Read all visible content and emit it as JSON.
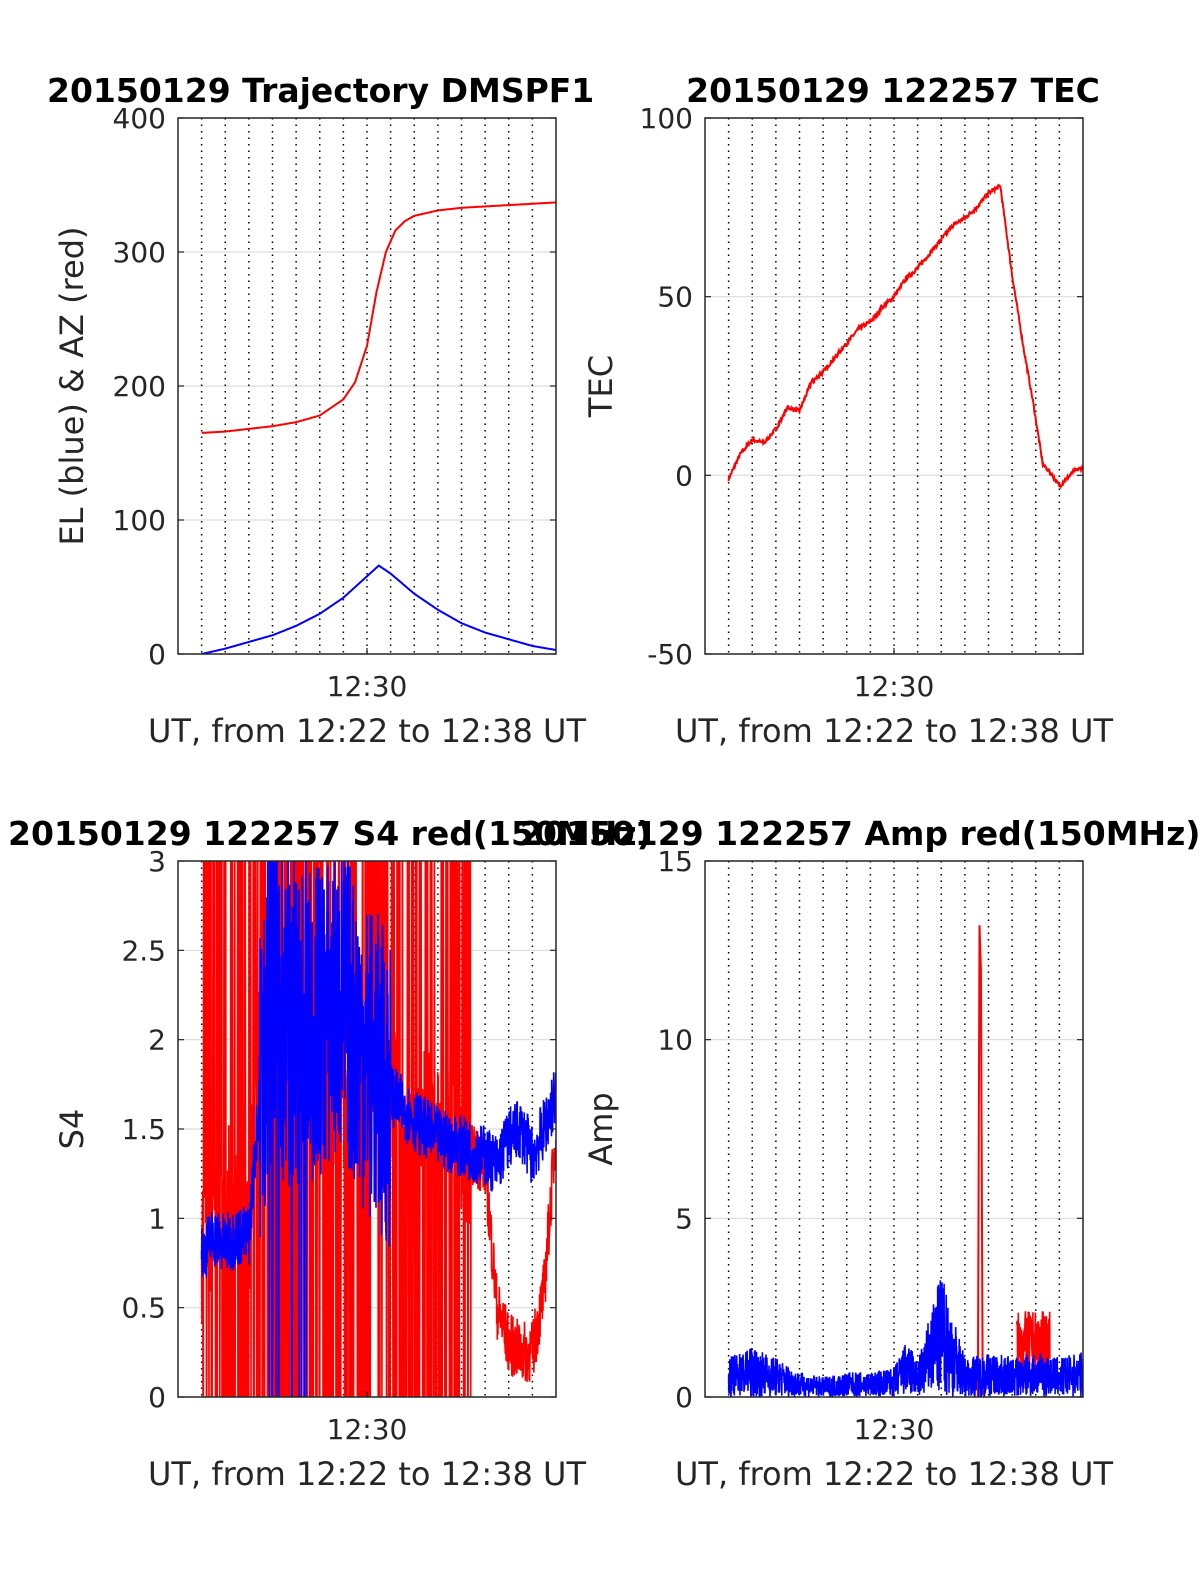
{
  "colors": {
    "red": "#ff0000",
    "blue": "#0000ff",
    "axis": "#262626",
    "grid": "#dcdcdc",
    "vgrid": "#000000"
  },
  "chart_data": [
    {
      "type": "line",
      "title": "20150129 Trajectory DMSPF1",
      "xlabel": "UT, from 12:22 to 12:38 UT",
      "ylabel": "EL (blue) & AZ (red)",
      "x_ticks": [
        "12:30"
      ],
      "y_ticks": [
        "0",
        "100",
        "200",
        "300",
        "400"
      ],
      "ylim": [
        0,
        400
      ],
      "xlim_minutes": [
        0,
        16
      ],
      "grid": "horizontal major lines plus dotted vertical lines",
      "series": [
        {
          "color": "red",
          "x": [
            1,
            2,
            3,
            4,
            5,
            6,
            7,
            7.5,
            8,
            8.4,
            8.8,
            9.2,
            9.6,
            10,
            11,
            12,
            13,
            14,
            15,
            16
          ],
          "y": [
            165,
            166,
            168,
            170,
            173,
            178,
            190,
            203,
            230,
            270,
            300,
            316,
            323,
            327,
            331,
            333,
            334,
            335,
            336,
            337
          ]
        },
        {
          "color": "blue",
          "x": [
            1,
            2,
            3,
            4,
            5,
            6,
            7,
            8,
            8.5,
            9,
            10,
            11,
            12,
            13,
            14,
            15,
            16
          ],
          "y": [
            0,
            4,
            9,
            14,
            21,
            30,
            42,
            58,
            66,
            60,
            45,
            33,
            23,
            16,
            11,
            6,
            3
          ]
        }
      ]
    },
    {
      "type": "line",
      "title": "20150129 122257 TEC",
      "xlabel": "UT, from 12:22 to 12:38 UT",
      "ylabel": "TEC",
      "x_ticks": [
        "12:30"
      ],
      "y_ticks": [
        "-50",
        "0",
        "50",
        "100"
      ],
      "ylim": [
        -50,
        100
      ],
      "xlim_minutes": [
        0,
        16
      ],
      "grid": "horizontal major lines plus dotted vertical lines",
      "series": [
        {
          "color": "red",
          "x": [
            1,
            1.5,
            2,
            2.5,
            3,
            3.5,
            4,
            4.5,
            5,
            5.5,
            6,
            6.5,
            7,
            7.5,
            8,
            8.5,
            9,
            9.5,
            10,
            10.5,
            11,
            11.5,
            12,
            12.5,
            13,
            13.5,
            13.9,
            14.3,
            14.6,
            15,
            15.3,
            15.6,
            15.9,
            16
          ],
          "y": [
            -1,
            6,
            10,
            9,
            13,
            19,
            18,
            26,
            29,
            33,
            37,
            41,
            43,
            47,
            50,
            55,
            58,
            62,
            66,
            70,
            72,
            75,
            79,
            81,
            56,
            35,
            20,
            3,
            1,
            -3,
            -1,
            1,
            2,
            2
          ]
        }
      ]
    },
    {
      "type": "line",
      "title": "20150129 122257 S4 red(150MHz)",
      "xlabel": "UT, from 12:22 to 12:38 UT",
      "ylabel": "S4",
      "x_ticks": [
        "12:30"
      ],
      "y_ticks": [
        "0",
        "0.5",
        "1",
        "1.5",
        "2",
        "2.5",
        "3"
      ],
      "ylim": [
        0,
        3
      ],
      "xlim_minutes": [
        0,
        16
      ],
      "grid": "horizontal major lines plus dotted vertical lines",
      "series": [
        {
          "color": "red",
          "x": [
            1,
            2,
            3,
            3.5,
            4,
            5,
            6,
            7,
            8,
            9,
            10,
            11,
            12,
            13,
            13.5,
            14,
            14.5,
            15,
            15.5,
            16
          ],
          "y": [
            0.8,
            1.2,
            0.9,
            2.5,
            1.5,
            1.8,
            1.9,
            1.6,
            1.8,
            1.7,
            1.5,
            1.6,
            1.4,
            1.3,
            0.5,
            0.3,
            0.25,
            0.25,
            0.6,
            1.5
          ]
        },
        {
          "color": "blue",
          "x": [
            1,
            1.5,
            2,
            2.5,
            3,
            3.5,
            4,
            5,
            6,
            7,
            8,
            9,
            10,
            11,
            12,
            13,
            13.5,
            14,
            14.5,
            15,
            15.5,
            16
          ],
          "y": [
            0.8,
            0.9,
            0.85,
            0.9,
            0.9,
            1.8,
            2.2,
            2.0,
            2.1,
            2.2,
            1.9,
            1.7,
            1.55,
            1.45,
            1.4,
            1.35,
            1.3,
            1.45,
            1.5,
            1.35,
            1.5,
            1.7
          ]
        }
      ]
    },
    {
      "type": "line",
      "title": "20150129 122257 Amp red(150MHz)",
      "xlabel": "UT, from 12:22 to 12:38 UT",
      "ylabel": "Amp",
      "x_ticks": [
        "12:30"
      ],
      "y_ticks": [
        "0",
        "5",
        "10",
        "15"
      ],
      "ylim": [
        0,
        15
      ],
      "xlim_minutes": [
        0,
        16
      ],
      "grid": "horizontal major lines plus dotted vertical lines",
      "series": [
        {
          "color": "red",
          "x": [
            11.6,
            11.65,
            11.7,
            11.75,
            11.8,
            13.2,
            13.5,
            13.8,
            14.1,
            14.4,
            14.6
          ],
          "y": [
            0,
            13.2,
            12.0,
            1.0,
            0,
            1.6,
            2.2,
            1.8,
            2.1,
            1.7,
            1.9
          ]
        },
        {
          "color": "blue",
          "x": [
            1,
            2,
            3,
            4,
            5,
            6,
            7,
            8,
            8.6,
            9,
            10,
            11,
            12,
            13,
            14,
            15,
            16
          ],
          "y": [
            0.8,
            1.0,
            0.8,
            0.5,
            0.4,
            0.5,
            0.5,
            0.6,
            1.2,
            0.7,
            2.5,
            0.8,
            0.9,
            0.8,
            0.9,
            0.8,
            0.9
          ]
        }
      ]
    }
  ]
}
